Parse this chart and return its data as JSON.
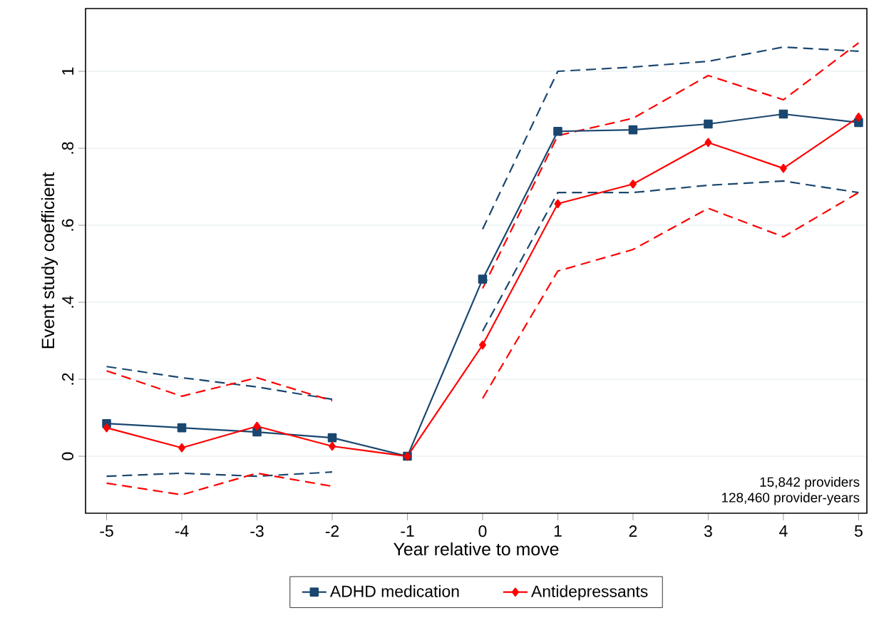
{
  "chart_data": {
    "type": "line",
    "xlabel": "Year relative to move",
    "ylabel": "Event study coefficient",
    "x": [
      -5,
      -4,
      -3,
      -2,
      -1,
      0,
      1,
      2,
      3,
      4,
      5
    ],
    "xlim": [
      -5.28,
      5.11
    ],
    "ylim": [
      -0.148,
      1.163
    ],
    "xticks": [
      -5,
      -4,
      -3,
      -2,
      -1,
      0,
      1,
      2,
      3,
      4,
      5
    ],
    "yticks": [
      0,
      {
        "value": 0.2,
        "label": ".2"
      },
      {
        "value": 0.4,
        "label": ".4"
      },
      {
        "value": 0.6,
        "label": ".6"
      },
      {
        "value": 0.8,
        "label": ".8"
      },
      1
    ],
    "grid": "y",
    "legend": "bottom",
    "annotations": [
      "15,842 providers",
      "128,460 provider-years"
    ],
    "series": [
      {
        "color": "#1a476f",
        "line_style": "dashed",
        "marker": "none",
        "values": [
          0.233,
          0.204,
          0.18,
          0.148,
          null,
          0.59,
          1.0,
          1.011,
          1.026,
          1.063,
          1.052
        ]
      },
      {
        "color": "#1a476f",
        "line_style": "dashed",
        "marker": "none",
        "values": [
          -0.052,
          -0.044,
          -0.052,
          -0.041,
          null,
          0.325,
          0.685,
          0.685,
          0.704,
          0.715,
          0.685
        ]
      },
      {
        "color": "#ff0000",
        "line_style": "dashed",
        "marker": "none",
        "values": [
          0.222,
          0.156,
          0.204,
          0.144,
          null,
          0.436,
          0.833,
          0.878,
          0.989,
          0.926,
          1.074
        ]
      },
      {
        "color": "#ff0000",
        "line_style": "dashed",
        "marker": "none",
        "values": [
          -0.07,
          -0.1,
          -0.044,
          -0.078,
          null,
          0.15,
          0.481,
          0.537,
          0.644,
          0.57,
          0.685
        ]
      },
      {
        "name": "ADHD medication",
        "color": "#1a476f",
        "line_style": "solid",
        "marker": "square",
        "values": [
          0.085,
          0.074,
          0.063,
          0.048,
          0,
          0.46,
          0.844,
          0.848,
          0.863,
          0.889,
          0.867
        ]
      },
      {
        "name": "Antidepressants",
        "color": "#ff0000",
        "line_style": "solid",
        "marker": "diamond",
        "values": [
          0.074,
          0.022,
          0.078,
          0.026,
          0,
          0.289,
          0.656,
          0.707,
          0.815,
          0.748,
          0.881
        ]
      }
    ]
  }
}
